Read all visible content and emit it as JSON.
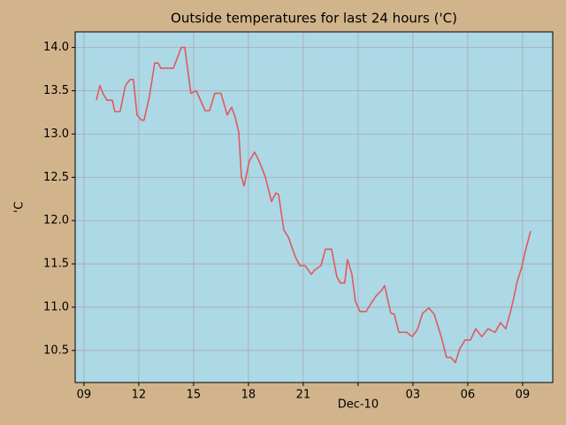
{
  "chart_data": {
    "type": "line",
    "title": "Outside temperatures for last 24 hours ('C)",
    "ylabel": "'C",
    "color": "#e05a5f",
    "grid": true,
    "x": [
      9.68,
      9.87,
      10.06,
      10.26,
      10.55,
      10.69,
      10.98,
      11.27,
      11.52,
      11.71,
      11.9,
      12.15,
      12.29,
      12.58,
      12.87,
      13.06,
      13.21,
      13.89,
      14.13,
      14.32,
      14.52,
      14.85,
      15.15,
      15.63,
      15.87,
      16.16,
      16.5,
      16.84,
      17.08,
      17.27,
      17.47,
      17.61,
      17.76,
      18.05,
      18.34,
      18.58,
      18.92,
      19.26,
      19.5,
      19.65,
      19.94,
      20.18,
      20.57,
      20.81,
      21.1,
      21.44,
      21.63,
      21.97,
      22.21,
      22.55,
      22.84,
      23.03,
      23.27,
      23.42,
      23.66,
      23.85,
      24.1,
      24.44,
      24.73,
      25.02,
      25.31,
      25.45,
      25.79,
      25.98,
      26.23,
      26.66,
      26.95,
      27.24,
      27.53,
      27.87,
      28.16,
      28.55,
      28.84,
      29.08,
      29.32,
      29.56,
      29.85,
      30.14,
      30.44,
      30.77,
      31.11,
      31.5,
      31.79,
      32.08,
      32.32,
      32.52,
      32.71,
      32.95,
      33.14,
      33.44
    ],
    "values": [
      13.39,
      13.56,
      13.46,
      13.39,
      13.39,
      13.26,
      13.26,
      13.56,
      13.63,
      13.63,
      13.22,
      13.16,
      13.16,
      13.43,
      13.82,
      13.82,
      13.76,
      13.76,
      13.89,
      14.0,
      14.0,
      13.47,
      13.5,
      13.27,
      13.27,
      13.47,
      13.47,
      13.22,
      13.31,
      13.2,
      13.02,
      12.51,
      12.4,
      12.69,
      12.79,
      12.69,
      12.51,
      12.22,
      12.32,
      12.3,
      11.89,
      11.81,
      11.58,
      11.48,
      11.48,
      11.38,
      11.43,
      11.48,
      11.67,
      11.67,
      11.35,
      11.28,
      11.28,
      11.55,
      11.38,
      11.07,
      10.95,
      10.95,
      11.05,
      11.14,
      11.2,
      11.25,
      10.93,
      10.92,
      10.71,
      10.71,
      10.66,
      10.74,
      10.93,
      10.99,
      10.92,
      10.66,
      10.42,
      10.42,
      10.36,
      10.52,
      10.62,
      10.62,
      10.75,
      10.66,
      10.75,
      10.71,
      10.82,
      10.75,
      10.93,
      11.11,
      11.3,
      11.46,
      11.64,
      11.88
    ],
    "xlim": [
      8.52,
      34.65
    ],
    "ylim": [
      10.13,
      14.18
    ],
    "xticks": [
      {
        "value": 9,
        "label": "09"
      },
      12,
      15,
      18,
      21,
      {
        "value": 24,
        "label": "Dec-10"
      },
      {
        "value": 27,
        "label": "03"
      },
      {
        "value": 30,
        "label": "06"
      },
      {
        "value": 33,
        "label": "09"
      }
    ],
    "yticks": [
      10.5,
      {
        "value": 11,
        "label": "11.0"
      },
      11.5,
      {
        "value": 12,
        "label": "12.0"
      },
      12.5,
      {
        "value": 13,
        "label": "13.0"
      },
      13.5,
      {
        "value": 14,
        "label": "14.0"
      }
    ]
  }
}
